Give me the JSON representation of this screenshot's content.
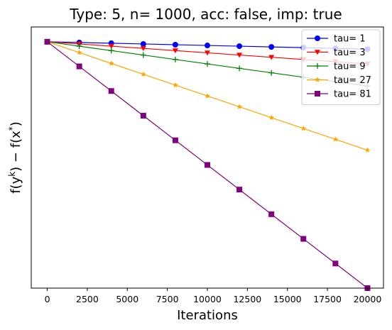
{
  "chart_data": {
    "type": "line",
    "title": "Type: 5, n= 1000, acc: false, imp: true",
    "xlabel": "Iterations",
    "ylabel": "f(y^k) − f(x^*)",
    "xlim": [
      -1000,
      21000
    ],
    "ylim": [
      0,
      1.06
    ],
    "x_ticks": [
      0,
      2500,
      5000,
      7500,
      10000,
      12500,
      15000,
      17500,
      20000
    ],
    "x_tick_labels": [
      "0",
      "2500",
      "5000",
      "7500",
      "10000",
      "12500",
      "15000",
      "17500",
      "20000"
    ],
    "y_ticks_shown": false,
    "grid": false,
    "legend_position": "top-right",
    "x": [
      0,
      2000,
      4000,
      6000,
      8000,
      10000,
      12000,
      14000,
      16000,
      18000,
      20000
    ],
    "series": [
      {
        "name": "tau= 1",
        "color": "#0000ff",
        "marker": "circle",
        "values": [
          1.0,
          0.997,
          0.994,
          0.991,
          0.988,
          0.985,
          0.982,
          0.979,
          0.976,
          0.973,
          0.97
        ]
      },
      {
        "name": "tau= 3",
        "color": "#ff0000",
        "marker": "triangle-down",
        "values": [
          1.0,
          0.991,
          0.982,
          0.973,
          0.964,
          0.955,
          0.946,
          0.937,
          0.928,
          0.919,
          0.91
        ]
      },
      {
        "name": "tau= 9",
        "color": "#008000",
        "marker": "plus",
        "values": [
          1.0,
          0.982,
          0.964,
          0.946,
          0.928,
          0.91,
          0.892,
          0.874,
          0.856,
          0.838,
          0.82
        ]
      },
      {
        "name": "tau= 27",
        "color": "#ffa500",
        "marker": "star",
        "values": [
          1.0,
          0.956,
          0.912,
          0.868,
          0.824,
          0.78,
          0.736,
          0.692,
          0.648,
          0.604,
          0.56
        ]
      },
      {
        "name": "tau= 81",
        "color": "#800080",
        "marker": "square",
        "values": [
          1.0,
          0.9,
          0.8,
          0.7,
          0.6,
          0.5,
          0.4,
          0.3,
          0.2,
          0.1,
          0.0
        ]
      }
    ]
  }
}
